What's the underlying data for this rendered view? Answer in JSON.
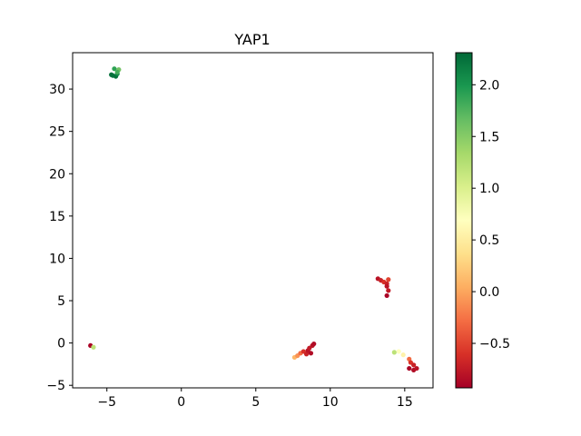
{
  "chart_data": {
    "type": "scatter",
    "title": "YAP1",
    "xlabel": "",
    "ylabel": "",
    "xlim": [
      -7.3,
      16.9
    ],
    "ylim": [
      -5.3,
      34.3
    ],
    "xticks": [
      -5,
      0,
      5,
      10,
      15
    ],
    "yticks": [
      -5,
      0,
      5,
      10,
      15,
      20,
      25,
      30
    ],
    "xtick_labels": [
      "−5",
      "0",
      "5",
      "10",
      "15"
    ],
    "ytick_labels": [
      "−5",
      "0",
      "5",
      "10",
      "15",
      "20",
      "25",
      "30"
    ],
    "grid": false,
    "colorbar": {
      "cmap": "RdYlGn",
      "vmin": -0.93,
      "vmax": 2.31,
      "ticks": [
        -0.5,
        0.0,
        0.5,
        1.0,
        1.5,
        2.0
      ],
      "tick_labels": [
        "−0.5",
        "0.0",
        "0.5",
        "1.0",
        "1.5",
        "2.0"
      ]
    },
    "points": [
      {
        "x": -4.6,
        "y": 31.6,
        "v": 2.2
      },
      {
        "x": -4.4,
        "y": 31.5,
        "v": 2.25
      },
      {
        "x": -4.3,
        "y": 31.8,
        "v": 2.1
      },
      {
        "x": -4.5,
        "y": 32.4,
        "v": 1.9
      },
      {
        "x": -4.2,
        "y": 32.3,
        "v": 1.6
      },
      {
        "x": -4.3,
        "y": 32.0,
        "v": 1.8
      },
      {
        "x": -4.7,
        "y": 31.7,
        "v": 2.25
      },
      {
        "x": -6.1,
        "y": -0.3,
        "v": -0.9
      },
      {
        "x": -5.9,
        "y": -0.5,
        "v": 1.2
      },
      {
        "x": 13.2,
        "y": 7.6,
        "v": -0.8
      },
      {
        "x": 13.4,
        "y": 7.4,
        "v": -0.7
      },
      {
        "x": 13.6,
        "y": 7.2,
        "v": -0.6
      },
      {
        "x": 13.8,
        "y": 7.0,
        "v": -0.7
      },
      {
        "x": 13.9,
        "y": 7.5,
        "v": -0.5
      },
      {
        "x": 13.8,
        "y": 6.7,
        "v": -0.8
      },
      {
        "x": 13.9,
        "y": 6.2,
        "v": -0.75
      },
      {
        "x": 13.8,
        "y": 5.6,
        "v": -0.9
      },
      {
        "x": 7.6,
        "y": -1.7,
        "v": 0.1
      },
      {
        "x": 7.8,
        "y": -1.5,
        "v": -0.1
      },
      {
        "x": 8.0,
        "y": -1.2,
        "v": -0.3
      },
      {
        "x": 8.2,
        "y": -1.0,
        "v": -0.6
      },
      {
        "x": 8.4,
        "y": -1.3,
        "v": -0.7
      },
      {
        "x": 8.5,
        "y": -0.9,
        "v": -0.8
      },
      {
        "x": 8.6,
        "y": -0.6,
        "v": -0.75
      },
      {
        "x": 8.8,
        "y": -0.3,
        "v": -0.8
      },
      {
        "x": 8.9,
        "y": -0.1,
        "v": -0.85
      },
      {
        "x": 8.7,
        "y": -1.2,
        "v": -0.85
      },
      {
        "x": 14.3,
        "y": -1.1,
        "v": 1.2
      },
      {
        "x": 14.6,
        "y": -1.0,
        "v": 0.7
      },
      {
        "x": 14.9,
        "y": -1.4,
        "v": 0.55
      },
      {
        "x": 15.3,
        "y": -1.9,
        "v": -0.3
      },
      {
        "x": 15.4,
        "y": -2.3,
        "v": -0.6
      },
      {
        "x": 15.6,
        "y": -2.6,
        "v": -0.7
      },
      {
        "x": 15.3,
        "y": -3.0,
        "v": -0.9
      },
      {
        "x": 15.6,
        "y": -3.2,
        "v": -0.85
      },
      {
        "x": 15.8,
        "y": -3.0,
        "v": -0.8
      }
    ]
  }
}
